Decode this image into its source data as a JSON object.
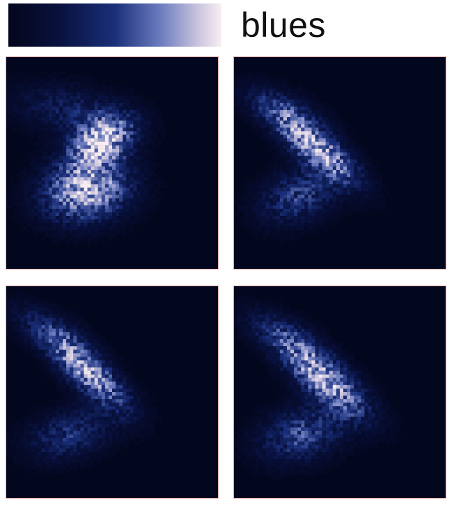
{
  "colormap": {
    "label": "blues",
    "stops": [
      "#04061c",
      "#091240",
      "#1a2f7a",
      "#6e7ec0",
      "#c6c0dc",
      "#f8eef2"
    ]
  },
  "chart_data": {
    "type": "heatmap",
    "title": "",
    "colormap": "blues",
    "background_color": "#03071e",
    "panels": [
      {
        "blobs": [
          {
            "cx": 0.45,
            "cy": 0.4,
            "rx": 0.17,
            "ry": 0.11,
            "angle": -30,
            "peak": 1.0
          },
          {
            "cx": 0.38,
            "cy": 0.63,
            "rx": 0.22,
            "ry": 0.15,
            "angle": -10,
            "peak": 0.95
          },
          {
            "cx": 0.3,
            "cy": 0.25,
            "rx": 0.28,
            "ry": 0.12,
            "angle": 10,
            "peak": 0.35
          }
        ]
      },
      {
        "blobs": [
          {
            "cx": 0.38,
            "cy": 0.42,
            "rx": 0.26,
            "ry": 0.09,
            "angle": 40,
            "peak": 0.95
          },
          {
            "cx": 0.3,
            "cy": 0.66,
            "rx": 0.2,
            "ry": 0.13,
            "angle": -20,
            "peak": 0.5
          },
          {
            "cx": 0.22,
            "cy": 0.24,
            "rx": 0.22,
            "ry": 0.09,
            "angle": 20,
            "peak": 0.3
          }
        ]
      },
      {
        "blobs": [
          {
            "cx": 0.38,
            "cy": 0.4,
            "rx": 0.26,
            "ry": 0.09,
            "angle": 42,
            "peak": 0.9
          },
          {
            "cx": 0.3,
            "cy": 0.7,
            "rx": 0.22,
            "ry": 0.12,
            "angle": -15,
            "peak": 0.45
          },
          {
            "cx": 0.2,
            "cy": 0.2,
            "rx": 0.22,
            "ry": 0.09,
            "angle": 25,
            "peak": 0.28
          }
        ]
      },
      {
        "blobs": [
          {
            "cx": 0.42,
            "cy": 0.43,
            "rx": 0.27,
            "ry": 0.1,
            "angle": 40,
            "peak": 0.95
          },
          {
            "cx": 0.32,
            "cy": 0.7,
            "rx": 0.22,
            "ry": 0.13,
            "angle": -15,
            "peak": 0.55
          },
          {
            "cx": 0.22,
            "cy": 0.22,
            "rx": 0.22,
            "ry": 0.09,
            "angle": 25,
            "peak": 0.3
          }
        ]
      }
    ]
  }
}
